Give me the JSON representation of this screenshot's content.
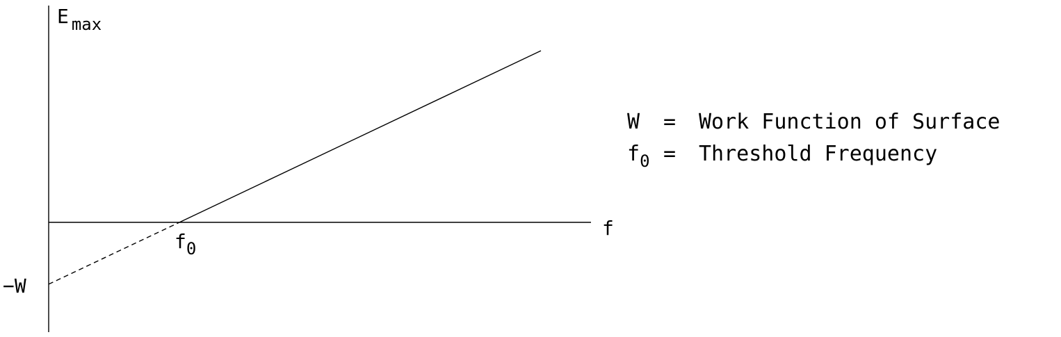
{
  "labels": {
    "y_axis": "E",
    "y_axis_sub": "max",
    "x_axis": "f",
    "threshold": "f",
    "threshold_sub": "0",
    "intercept": "−W"
  },
  "legend": [
    {
      "symbol": "W",
      "symbol_sub": "",
      "eq": "=",
      "text": "Work Function of Surface"
    },
    {
      "symbol": "f",
      "symbol_sub": "0",
      "eq": "=",
      "text": "Threshold Frequency"
    }
  ],
  "colors": {
    "stroke": "#000000",
    "background": "#ffffff"
  }
}
